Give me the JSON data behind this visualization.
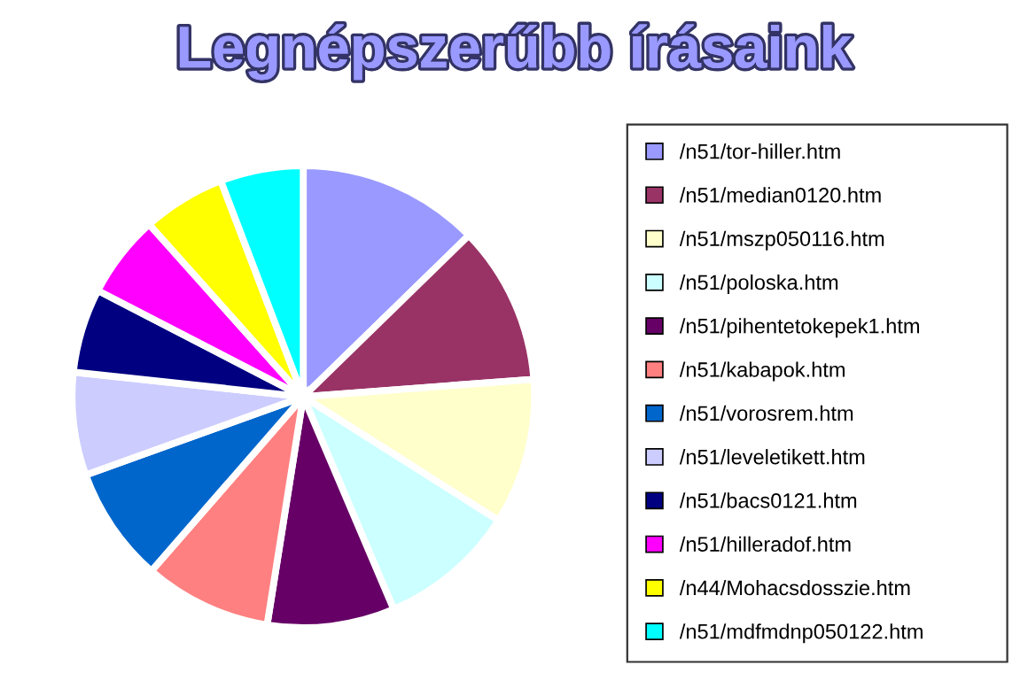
{
  "chart_data": {
    "type": "pie",
    "title": "Legnépszerűbb írásaink",
    "categories": [
      "/n51/tor-hiller.htm",
      "/n51/median0120.htm",
      "/n51/mszp050116.htm",
      "/n51/poloska.htm",
      "/n51/pihentetokepek1.htm",
      "/n51/kabapok.htm",
      "/n51/vorosrem.htm",
      "/n51/leveletikett.htm",
      "/n51/bacs0121.htm",
      "/n51/hilleradof.htm",
      "/n44/Mohacsdosszie.htm",
      "/n51/mdfmdnp050122.htm"
    ],
    "values": [
      12.7,
      11.1,
      10.2,
      9.6,
      8.9,
      8.9,
      8.1,
      7.2,
      5.9,
      5.8,
      5.8,
      5.8
    ],
    "colors": [
      "#9999ff",
      "#993366",
      "#ffffcc",
      "#ccffff",
      "#660066",
      "#ff8080",
      "#0066cc",
      "#ccccff",
      "#000080",
      "#ff00ff",
      "#ffff00",
      "#00ffff"
    ],
    "legend": "right"
  }
}
